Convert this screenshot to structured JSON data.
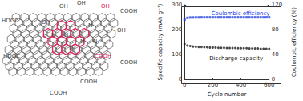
{
  "chart_data": {
    "type": "scatter",
    "x": [
      0,
      20,
      40,
      60,
      80,
      100,
      120,
      140,
      160,
      180,
      200,
      220,
      240,
      260,
      280,
      300,
      320,
      340,
      360,
      380,
      400,
      420,
      440,
      460,
      480,
      500,
      520,
      540,
      560,
      580,
      600
    ],
    "series": [
      {
        "name": "Discharge capacity",
        "color": "#1a1a1a",
        "marker": "circle",
        "values": [
          142,
          136,
          134,
          132,
          131,
          130,
          130,
          129,
          129,
          128,
          128,
          128,
          127,
          127,
          127,
          126,
          126,
          126,
          126,
          125,
          125,
          125,
          125,
          124,
          124,
          124,
          124,
          123,
          123,
          123,
          123
        ]
      },
      {
        "name": "Coulombic efficiency",
        "color": "#1f3fe0",
        "marker": "square",
        "axis": "y2",
        "values": [
          96,
          99,
          99.5,
          99.6,
          99.7,
          99.7,
          99.8,
          99.8,
          99.8,
          99.8,
          99.8,
          99.8,
          99.8,
          99.8,
          99.8,
          99.8,
          99.8,
          99.8,
          99.8,
          99.8,
          99.8,
          99.8,
          99.8,
          99.8,
          99.8,
          99.8,
          99.8,
          99.8,
          99.8,
          99.8,
          99.8
        ]
      }
    ],
    "x_label": "Cycle number",
    "y_label": "Specific capacity (mAh g⁻¹)",
    "y2_label": "Coulombic efficiency (%)",
    "xlim": [
      0,
      600
    ],
    "xticks": [
      0,
      200,
      400,
      600
    ],
    "ylim": [
      0,
      300
    ],
    "yticks": [
      0,
      100,
      200,
      300
    ],
    "y2lim": [
      0,
      120
    ],
    "y2ticks": [
      0,
      40,
      80,
      120
    ],
    "annotations": [
      "Coulombic efficiency",
      "Discharge capacity"
    ],
    "grid": false
  },
  "scheme": {
    "labels": [
      "HOOC",
      "COOH",
      "COOH",
      "HOOC",
      "COOH",
      "COOH",
      "COOH",
      "OH",
      "OH",
      "OH",
      "OH",
      "OH",
      "N",
      "N",
      "N",
      "N",
      "N",
      "N"
    ]
  }
}
